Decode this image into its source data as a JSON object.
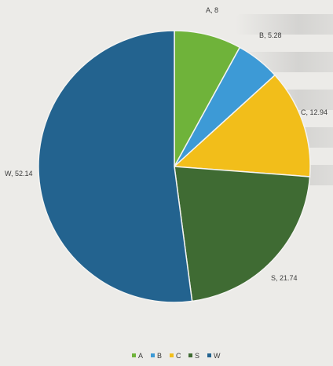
{
  "chart_data": {
    "type": "pie",
    "categories": [
      "A",
      "B",
      "C",
      "S",
      "W"
    ],
    "values": [
      8,
      5.28,
      12.94,
      21.74,
      52.14
    ],
    "slice_labels": [
      "A, 8",
      "B, 5.28",
      "C, 12.94",
      "S, 21.74",
      "W, 52.14"
    ],
    "colors": [
      "#6fb33a",
      "#3d9ad6",
      "#f2be1a",
      "#3f6b33",
      "#23638f"
    ],
    "title": "",
    "legend": {
      "placement": "bottom",
      "entries": [
        "A",
        "B",
        "C",
        "S",
        "W"
      ]
    },
    "start_angle_deg": 0,
    "direction": "clockwise"
  }
}
